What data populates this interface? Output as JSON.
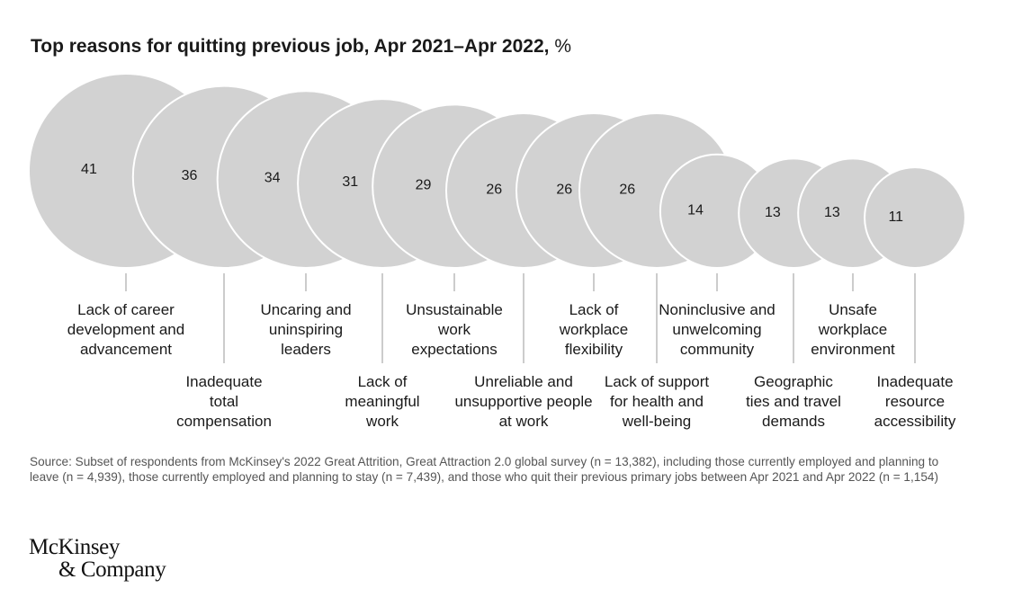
{
  "title": {
    "bold": "Top reasons for quitting previous job, Apr 2021–Apr 2022,",
    "unit": "%"
  },
  "chart_data": {
    "type": "bubble",
    "title": "Top reasons for quitting previous job, Apr 2021–Apr 2022, %",
    "categories": [
      "Lack of career development and advancement",
      "Inadequate total compensation",
      "Uncaring and uninspiring leaders",
      "Lack of meaningful work",
      "Unsustainable work expectations",
      "Unreliable and unsupportive people at work",
      "Lack of workplace flexibility",
      "Lack of support for health and well-being",
      "Noninclusive and unwelcoming community",
      "Geographic ties and travel demands",
      "Unsafe workplace environment",
      "Inadequate resource accessibility"
    ],
    "label_lines": [
      [
        "Lack of career",
        "development and",
        "advancement"
      ],
      [
        "Inadequate",
        "total",
        "compensation"
      ],
      [
        "Uncaring and",
        "uninspiring",
        "leaders"
      ],
      [
        "Lack of",
        "meaningful",
        "work"
      ],
      [
        "Unsustainable",
        "work",
        "expectations"
      ],
      [
        "Unreliable and",
        "unsupportive people",
        "at work"
      ],
      [
        "Lack of",
        "workplace",
        "flexibility"
      ],
      [
        "Lack of support",
        "for health and",
        "well-being"
      ],
      [
        "Noninclusive and",
        "unwelcoming",
        "community"
      ],
      [
        "Geographic",
        "ties and travel",
        "demands"
      ],
      [
        "Unsafe",
        "workplace",
        "environment"
      ],
      [
        "Inadequate",
        "resource",
        "accessibility"
      ]
    ],
    "label_rows": [
      "top",
      "bottom",
      "top",
      "bottom",
      "top",
      "bottom",
      "top",
      "bottom",
      "top",
      "bottom",
      "top",
      "bottom"
    ],
    "values": [
      41,
      36,
      34,
      31,
      29,
      26,
      26,
      26,
      14,
      13,
      13,
      11
    ],
    "unit": "%",
    "bubble_color": "#d2d2d2"
  },
  "source": "Source: Subset of respondents from McKinsey's 2022 Great Attrition, Great Attraction 2.0 global survey (n = 13,382), including those currently employed and planning to leave (n = 4,939), those currently employed and planning to stay (n = 7,439), and those who quit their previous primary jobs between Apr 2021 and Apr 2022 (n = 1,154)",
  "logo": {
    "line1": "McKinsey",
    "line2": "& Company"
  }
}
